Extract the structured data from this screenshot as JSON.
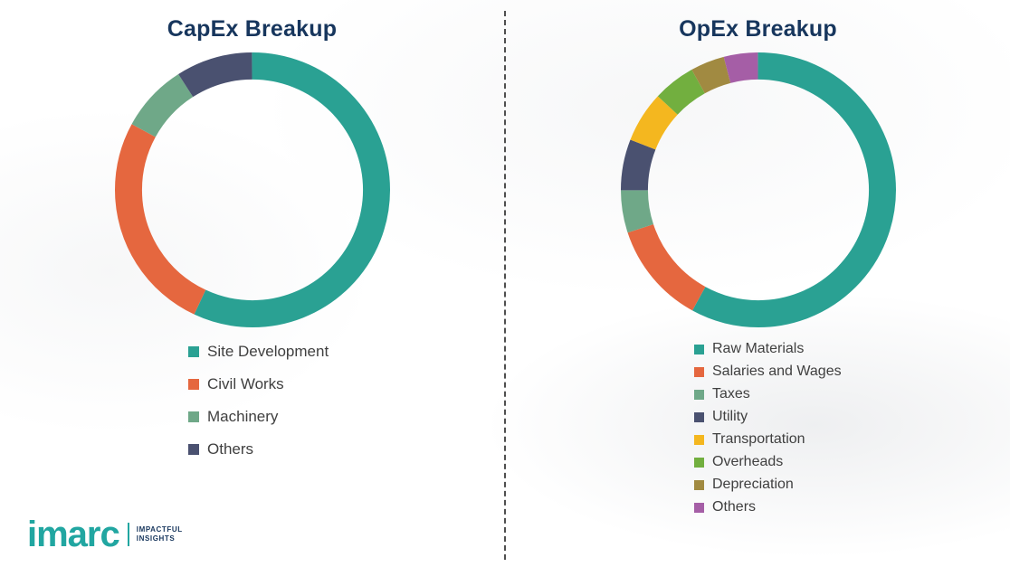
{
  "styles": {
    "title_color": "#17365D",
    "legend_text_color": "#404040",
    "divider_color": "#4F4F4F",
    "background_color": "#FFFFFF"
  },
  "logo": {
    "brand": "imarc",
    "tagline_line1": "IMPACTFUL",
    "tagline_line2": "INSIGHTS",
    "brand_color": "#21A6A1",
    "tagline_color": "#17365D"
  },
  "chart_data": [
    {
      "type": "pie",
      "donut": true,
      "title": "CapEx Breakup",
      "legend_position": "bottom-left",
      "categories": [
        "Site Development",
        "Civil Works",
        "Machinery",
        "Others"
      ],
      "values": [
        57,
        26,
        8,
        9
      ],
      "colors": [
        "#2AA193",
        "#E5673F",
        "#6FA888",
        "#4A5170"
      ],
      "start_angle_deg": 0,
      "direction": "clockwise"
    },
    {
      "type": "pie",
      "donut": true,
      "title": "OpEx Breakup",
      "legend_position": "bottom-left",
      "categories": [
        "Raw Materials",
        "Salaries and Wages",
        "Taxes",
        "Utility",
        "Transportation",
        "Overheads",
        "Depreciation",
        "Others"
      ],
      "values": [
        58,
        12,
        5,
        6,
        6,
        5,
        4,
        4
      ],
      "colors": [
        "#2AA193",
        "#E5673F",
        "#6FA888",
        "#4A5170",
        "#F4B71F",
        "#72AF3F",
        "#A18A41",
        "#A55EA6"
      ],
      "start_angle_deg": 0,
      "direction": "clockwise"
    }
  ]
}
